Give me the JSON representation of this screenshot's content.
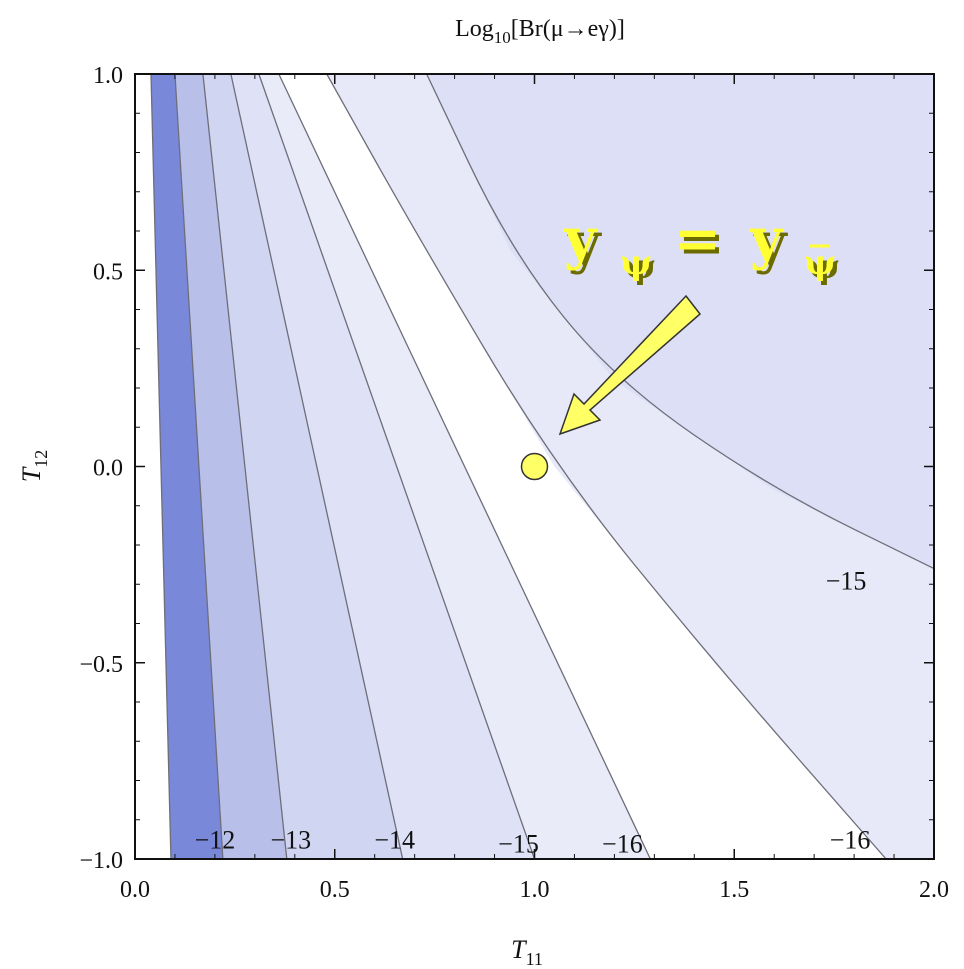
{
  "chart_data": {
    "type": "contour",
    "title_prefix": "Log",
    "title_sub": "10",
    "title_rest": "[Br(μ→eγ)]",
    "xlabel_main": "T",
    "xlabel_sub": "11",
    "ylabel_main": "T",
    "ylabel_sub": "12",
    "xlim": [
      0.0,
      2.0
    ],
    "ylim": [
      -1.0,
      1.0
    ],
    "xticks": [
      "0.0",
      "0.5",
      "1.0",
      "1.5",
      "2.0"
    ],
    "yticks": [
      "1.0",
      "0.5",
      "0.0",
      "-0.5",
      "-1.0"
    ],
    "contour_levels": [
      -12,
      -13,
      -14,
      -15,
      -16
    ],
    "contours": [
      {
        "level_label": "−12",
        "points": [
          [
            0.09,
            -1.0
          ],
          [
            0.04,
            1.0
          ]
        ]
      },
      {
        "level_label": "−12",
        "points": [
          [
            0.22,
            -1.0
          ],
          [
            0.1,
            1.0
          ]
        ]
      },
      {
        "level_label": "−13",
        "points": [
          [
            0.38,
            -1.0
          ],
          [
            0.17,
            1.0
          ]
        ]
      },
      {
        "level_label": "−14",
        "points": [
          [
            0.67,
            -1.0
          ],
          [
            0.24,
            1.0
          ]
        ]
      },
      {
        "level_label": "−15",
        "points": [
          [
            1.0,
            -1.0
          ],
          [
            0.31,
            1.0
          ]
        ]
      },
      {
        "level_label": "−16",
        "points": [
          [
            1.29,
            -1.0
          ],
          [
            0.36,
            1.0
          ]
        ]
      },
      {
        "level_label": "−16",
        "points": [
          [
            1.88,
            -1.0
          ],
          [
            1.05,
            0.0
          ],
          [
            0.48,
            1.0
          ]
        ]
      },
      {
        "level_label": "−15",
        "points": [
          [
            2.0,
            -0.26
          ],
          [
            1.35,
            0.08
          ],
          [
            0.94,
            0.55
          ],
          [
            0.73,
            1.0
          ]
        ]
      }
    ],
    "contour_labels": [
      {
        "text": "−12",
        "x": 0.2,
        "y": -0.95
      },
      {
        "text": "−13",
        "x": 0.39,
        "y": -0.95
      },
      {
        "text": "−14",
        "x": 0.65,
        "y": -0.95
      },
      {
        "text": "−15",
        "x": 0.96,
        "y": -0.96
      },
      {
        "text": "−16",
        "x": 1.22,
        "y": -0.96
      },
      {
        "text": "−16",
        "x": 1.79,
        "y": -0.95
      },
      {
        "text": "−15",
        "x": 1.78,
        "y": -0.29
      }
    ],
    "marker": {
      "x": 1.0,
      "y": 0.0,
      "color": "#ffff66"
    },
    "annotation": {
      "text": "y_ψ = y_ψ̄",
      "color": "#ffff33"
    },
    "colors": {
      "band_darkest": "#7a88d9",
      "band_dark": "#b8c0ea",
      "band_mid": "#d0d5f1",
      "band_light": "#dfe2f6",
      "band_lightest": "#e9ebf9",
      "band_white": "#ffffff",
      "band_upper_right": "#dcdff5",
      "band_right": "#e7e9f8",
      "contour_line": "#6e6e7a",
      "arrow_fill": "#ffff66"
    }
  }
}
